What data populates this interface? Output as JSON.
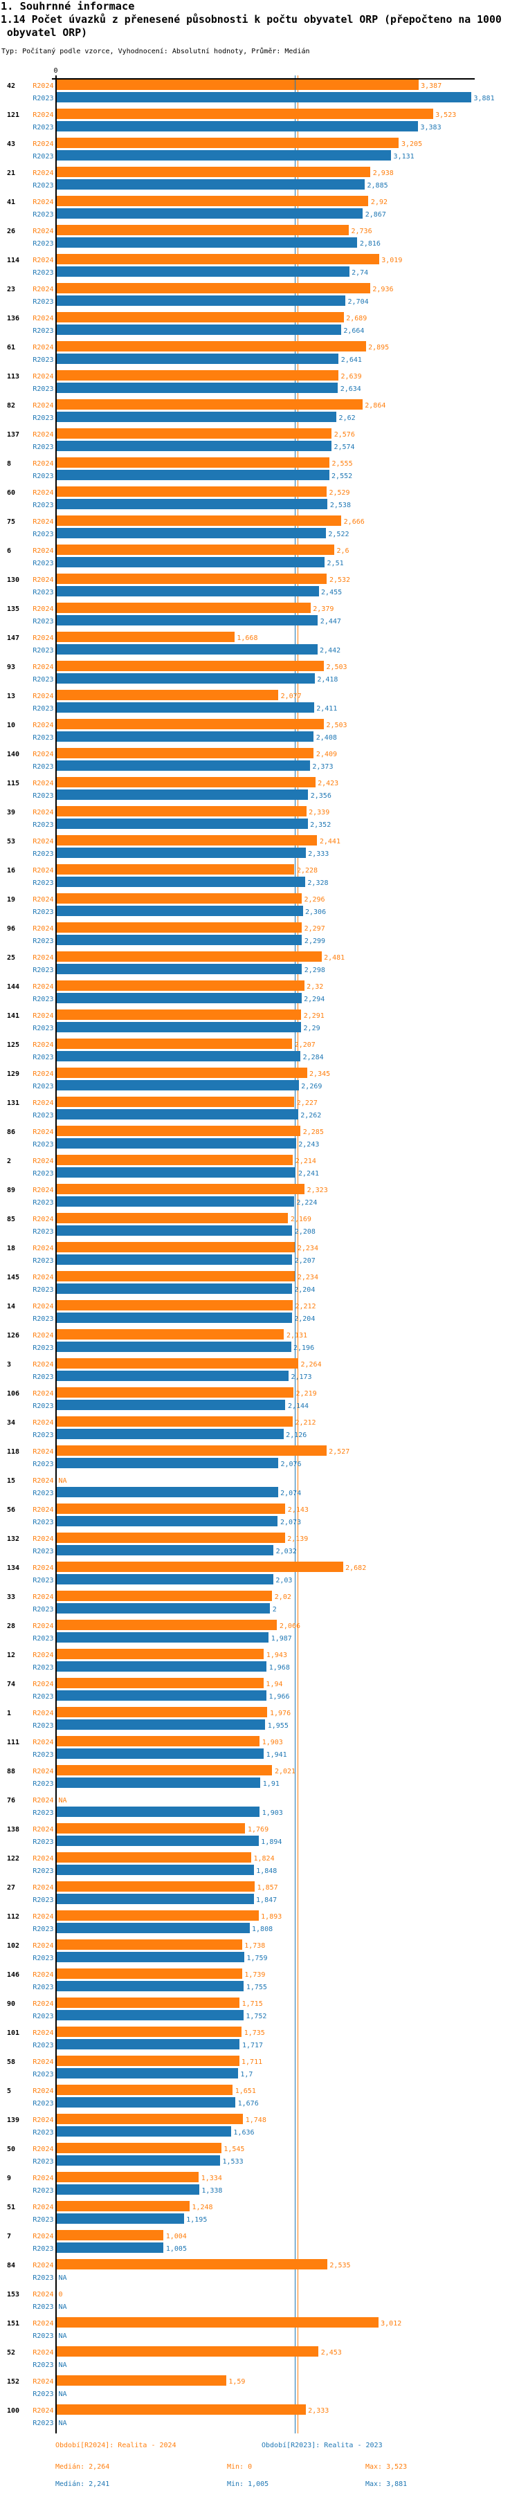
{
  "header": {
    "section_title": "1. Souhrnné informace",
    "title_line1": "1.14 Počet úvazků z přenesené působnosti k počtu obyvatel ORP (přepočteno na 1000",
    "title_line2": " obyvatel ORP)",
    "meta": "Typ: Počítaný podle vzorce, Vyhodnocení: Absolutní hodnoty, Průměr: Medián"
  },
  "chart_data": {
    "type": "bar",
    "orientation": "horizontal",
    "x_axis": {
      "zero_label": "0",
      "xlim": [
        0,
        3.914
      ]
    },
    "series_colors": {
      "R2024": "#ff7f0e",
      "R2023": "#1f77b4"
    },
    "series_names": [
      "R2024",
      "R2023"
    ],
    "na_label": "NA",
    "median_lines": {
      "R2024": "2,264",
      "R2023": "2,241"
    },
    "groups": [
      {
        "id": "42",
        "v2024": "3,387",
        "v2023": "3,881"
      },
      {
        "id": "121",
        "v2024": "3,523",
        "v2023": "3,383"
      },
      {
        "id": "43",
        "v2024": "3,205",
        "v2023": "3,131"
      },
      {
        "id": "21",
        "v2024": "2,938",
        "v2023": "2,885"
      },
      {
        "id": "41",
        "v2024": "2,92",
        "v2023": "2,867"
      },
      {
        "id": "26",
        "v2024": "2,736",
        "v2023": "2,816"
      },
      {
        "id": "114",
        "v2024": "3,019",
        "v2023": "2,74"
      },
      {
        "id": "23",
        "v2024": "2,936",
        "v2023": "2,704"
      },
      {
        "id": "136",
        "v2024": "2,689",
        "v2023": "2,664"
      },
      {
        "id": "61",
        "v2024": "2,895",
        "v2023": "2,641"
      },
      {
        "id": "113",
        "v2024": "2,639",
        "v2023": "2,634"
      },
      {
        "id": "82",
        "v2024": "2,864",
        "v2023": "2,62"
      },
      {
        "id": "137",
        "v2024": "2,576",
        "v2023": "2,574"
      },
      {
        "id": "8",
        "v2024": "2,555",
        "v2023": "2,552"
      },
      {
        "id": "60",
        "v2024": "2,529",
        "v2023": "2,538"
      },
      {
        "id": "75",
        "v2024": "2,666",
        "v2023": "2,522"
      },
      {
        "id": "6",
        "v2024": "2,6",
        "v2023": "2,51"
      },
      {
        "id": "130",
        "v2024": "2,532",
        "v2023": "2,455"
      },
      {
        "id": "135",
        "v2024": "2,379",
        "v2023": "2,447"
      },
      {
        "id": "147",
        "v2024": "1,668",
        "v2023": "2,442"
      },
      {
        "id": "93",
        "v2024": "2,503",
        "v2023": "2,418"
      },
      {
        "id": "13",
        "v2024": "2,077",
        "v2023": "2,411"
      },
      {
        "id": "10",
        "v2024": "2,503",
        "v2023": "2,408"
      },
      {
        "id": "140",
        "v2024": "2,409",
        "v2023": "2,373"
      },
      {
        "id": "115",
        "v2024": "2,423",
        "v2023": "2,356"
      },
      {
        "id": "39",
        "v2024": "2,339",
        "v2023": "2,352"
      },
      {
        "id": "53",
        "v2024": "2,441",
        "v2023": "2,333"
      },
      {
        "id": "16",
        "v2024": "2,228",
        "v2023": "2,328"
      },
      {
        "id": "19",
        "v2024": "2,296",
        "v2023": "2,306"
      },
      {
        "id": "96",
        "v2024": "2,297",
        "v2023": "2,299"
      },
      {
        "id": "25",
        "v2024": "2,481",
        "v2023": "2,298"
      },
      {
        "id": "144",
        "v2024": "2,32",
        "v2023": "2,294"
      },
      {
        "id": "141",
        "v2024": "2,291",
        "v2023": "2,29"
      },
      {
        "id": "125",
        "v2024": "2,207",
        "v2023": "2,284"
      },
      {
        "id": "129",
        "v2024": "2,345",
        "v2023": "2,269"
      },
      {
        "id": "131",
        "v2024": "2,227",
        "v2023": "2,262"
      },
      {
        "id": "86",
        "v2024": "2,285",
        "v2023": "2,243"
      },
      {
        "id": "2",
        "v2024": "2,214",
        "v2023": "2,241"
      },
      {
        "id": "89",
        "v2024": "2,323",
        "v2023": "2,224"
      },
      {
        "id": "85",
        "v2024": "2,169",
        "v2023": "2,208"
      },
      {
        "id": "18",
        "v2024": "2,234",
        "v2023": "2,207"
      },
      {
        "id": "145",
        "v2024": "2,234",
        "v2023": "2,204"
      },
      {
        "id": "14",
        "v2024": "2,212",
        "v2023": "2,204"
      },
      {
        "id": "126",
        "v2024": "2,131",
        "v2023": "2,196"
      },
      {
        "id": "3",
        "v2024": "2,264",
        "v2023": "2,173"
      },
      {
        "id": "106",
        "v2024": "2,219",
        "v2023": "2,144"
      },
      {
        "id": "34",
        "v2024": "2,212",
        "v2023": "2,126"
      },
      {
        "id": "118",
        "v2024": "2,527",
        "v2023": "2,076"
      },
      {
        "id": "15",
        "v2024": null,
        "v2023": "2,074"
      },
      {
        "id": "56",
        "v2024": "2,143",
        "v2023": "2,073"
      },
      {
        "id": "132",
        "v2024": "2,139",
        "v2023": "2,032"
      },
      {
        "id": "134",
        "v2024": "2,682",
        "v2023": "2,03"
      },
      {
        "id": "33",
        "v2024": "2,02",
        "v2023": "2"
      },
      {
        "id": "28",
        "v2024": "2,066",
        "v2023": "1,987"
      },
      {
        "id": "12",
        "v2024": "1,943",
        "v2023": "1,968"
      },
      {
        "id": "74",
        "v2024": "1,94",
        "v2023": "1,966"
      },
      {
        "id": "1",
        "v2024": "1,976",
        "v2023": "1,955"
      },
      {
        "id": "111",
        "v2024": "1,903",
        "v2023": "1,941"
      },
      {
        "id": "88",
        "v2024": "2,021",
        "v2023": "1,91"
      },
      {
        "id": "76",
        "v2024": null,
        "v2023": "1,903"
      },
      {
        "id": "138",
        "v2024": "1,769",
        "v2023": "1,894"
      },
      {
        "id": "122",
        "v2024": "1,824",
        "v2023": "1,848"
      },
      {
        "id": "27",
        "v2024": "1,857",
        "v2023": "1,847"
      },
      {
        "id": "112",
        "v2024": "1,893",
        "v2023": "1,808"
      },
      {
        "id": "102",
        "v2024": "1,738",
        "v2023": "1,759"
      },
      {
        "id": "146",
        "v2024": "1,739",
        "v2023": "1,755"
      },
      {
        "id": "90",
        "v2024": "1,715",
        "v2023": "1,752"
      },
      {
        "id": "101",
        "v2024": "1,735",
        "v2023": "1,717"
      },
      {
        "id": "58",
        "v2024": "1,711",
        "v2023": "1,7"
      },
      {
        "id": "5",
        "v2024": "1,651",
        "v2023": "1,676"
      },
      {
        "id": "139",
        "v2024": "1,748",
        "v2023": "1,636"
      },
      {
        "id": "50",
        "v2024": "1,545",
        "v2023": "1,533"
      },
      {
        "id": "9",
        "v2024": "1,334",
        "v2023": "1,338"
      },
      {
        "id": "51",
        "v2024": "1,248",
        "v2023": "1,195"
      },
      {
        "id": "7",
        "v2024": "1,004",
        "v2023": "1,005"
      },
      {
        "id": "84",
        "v2024": "2,535",
        "v2023": null
      },
      {
        "id": "153",
        "v2024": "0",
        "v2023": null
      },
      {
        "id": "151",
        "v2024": "3,012",
        "v2023": null
      },
      {
        "id": "52",
        "v2024": "2,453",
        "v2023": null
      },
      {
        "id": "152",
        "v2024": "1,59",
        "v2023": null
      },
      {
        "id": "100",
        "v2024": "2,333",
        "v2023": null
      }
    ]
  },
  "footer": {
    "period_2024": "Období[R2024]: Realita - 2024",
    "period_2023": "Období[R2023]: Realita - 2023",
    "stats_2024": {
      "median": "Medián: 2,264",
      "min": "Min: 0",
      "max": "Max: 3,523"
    },
    "stats_2023": {
      "median": "Medián: 2,241",
      "min": "Min: 1,005",
      "max": "Max: 3,881"
    }
  }
}
